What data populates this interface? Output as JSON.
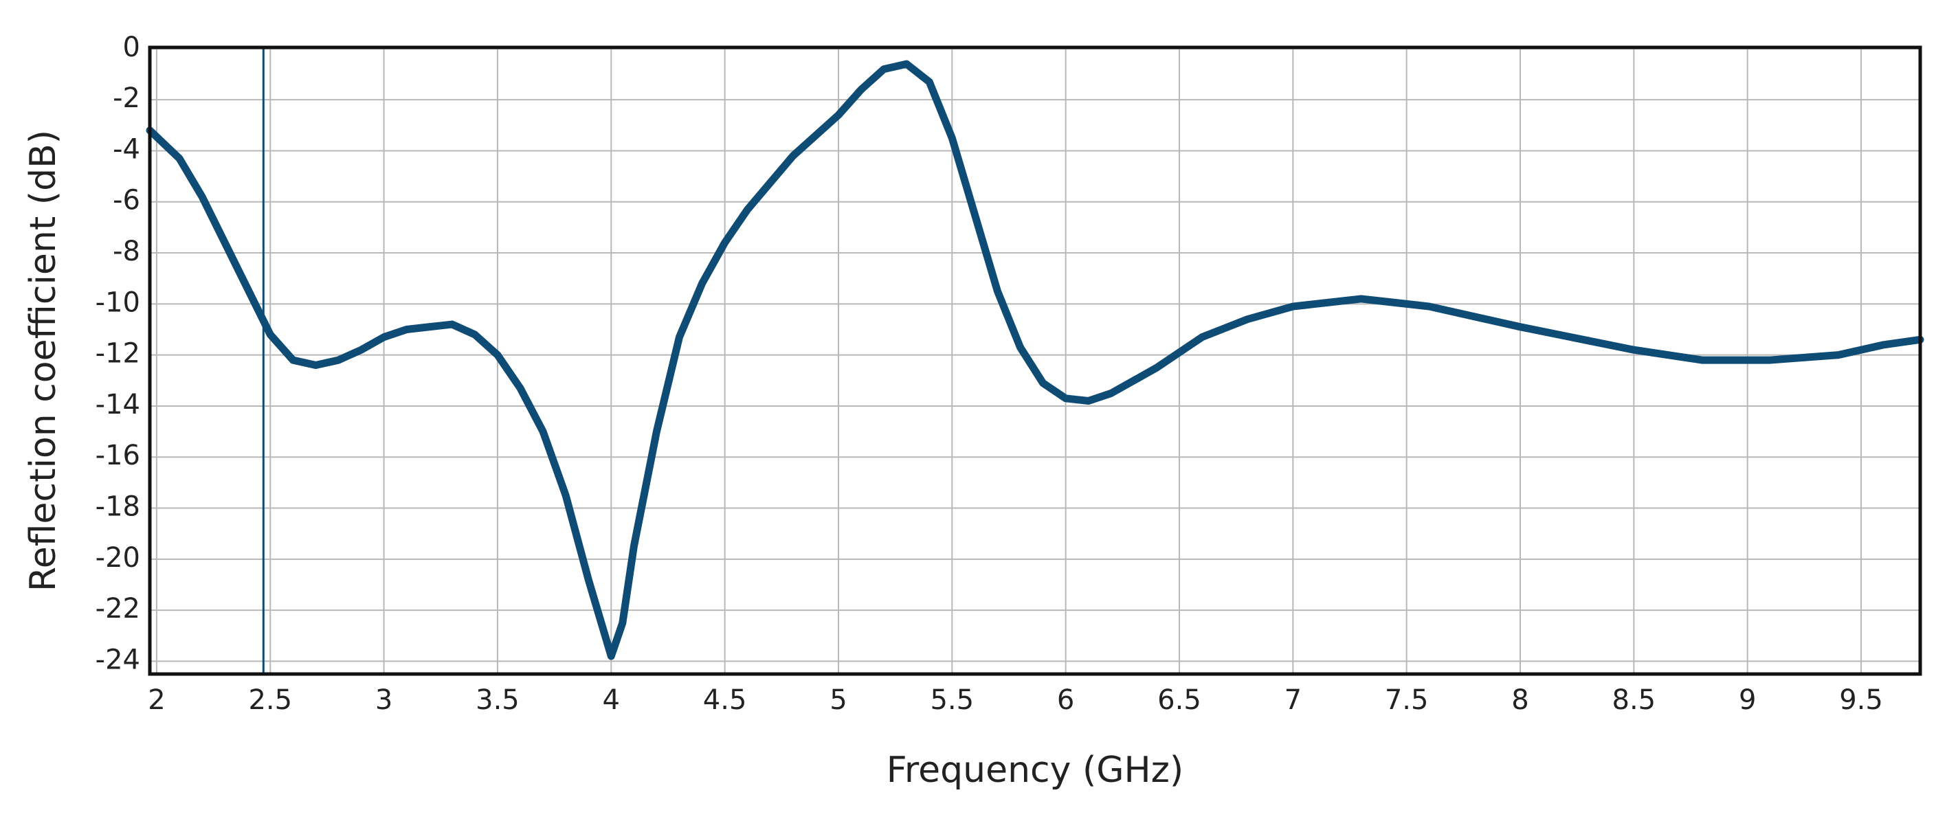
{
  "chart_data": {
    "type": "line",
    "x_label": "Frequency (GHz)",
    "y_label": "Reflection coefficient (dB)",
    "x": [
      1.97,
      2.1,
      2.2,
      2.3,
      2.4,
      2.5,
      2.6,
      2.7,
      2.8,
      2.9,
      3.0,
      3.1,
      3.2,
      3.3,
      3.4,
      3.5,
      3.6,
      3.7,
      3.8,
      3.9,
      4.0,
      4.05,
      4.1,
      4.2,
      4.3,
      4.4,
      4.5,
      4.6,
      4.8,
      5.0,
      5.1,
      5.2,
      5.3,
      5.4,
      5.5,
      5.6,
      5.7,
      5.8,
      5.9,
      6.0,
      6.1,
      6.2,
      6.4,
      6.6,
      6.8,
      7.0,
      7.3,
      7.6,
      8.0,
      8.5,
      8.8,
      9.1,
      9.4,
      9.6,
      9.76
    ],
    "values": [
      -3.2,
      -4.3,
      -5.8,
      -7.6,
      -9.4,
      -11.2,
      -12.2,
      -12.4,
      -12.2,
      -11.8,
      -11.3,
      -11.0,
      -10.9,
      -10.8,
      -11.2,
      -12.0,
      -13.3,
      -15.0,
      -17.5,
      -20.8,
      -23.8,
      -22.5,
      -19.5,
      -15.0,
      -11.3,
      -9.2,
      -7.6,
      -6.3,
      -4.2,
      -2.6,
      -1.6,
      -0.8,
      -0.6,
      -1.3,
      -3.5,
      -6.5,
      -9.5,
      -11.7,
      -13.1,
      -13.7,
      -13.8,
      -13.5,
      -12.5,
      -11.3,
      -10.6,
      -10.1,
      -9.8,
      -10.1,
      -10.9,
      -11.8,
      -12.2,
      -12.2,
      -12.0,
      -11.6,
      -11.4
    ],
    "color": "#0f4c75",
    "marker_x": 2.47,
    "marker_color": "#0f4c75",
    "xlim": [
      1.97,
      9.76
    ],
    "ylim": [
      -24.5,
      0.05
    ],
    "xticks": [
      2,
      2.5,
      3,
      3.5,
      4,
      4.5,
      5,
      5.5,
      6,
      6.5,
      7,
      7.5,
      8,
      8.5,
      9,
      9.5
    ],
    "yticks": [
      0,
      -2,
      -4,
      -6,
      -8,
      -10,
      -12,
      -14,
      -16,
      -18,
      -20,
      -22,
      -24
    ],
    "grid": true
  }
}
